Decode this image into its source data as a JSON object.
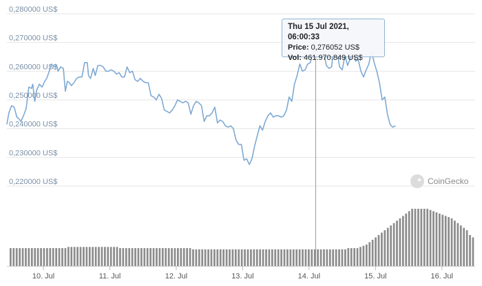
{
  "chart_data": {
    "type": "line",
    "y_ticks": [
      "0,280000 US$",
      "0,270000 US$",
      "0,260000 US$",
      "0,250000 US$",
      "0,240000 US$",
      "0,230000 US$",
      "0,220000 US$"
    ],
    "y_tick_values": [
      0.28,
      0.27,
      0.26,
      0.25,
      0.24,
      0.23,
      0.22
    ],
    "ylim": [
      0.22,
      0.28
    ],
    "x_ticks": [
      "10. Jul",
      "11. Jul",
      "12. Jul",
      "13. Jul",
      "14. Jul",
      "15. Jul",
      "16. Jul"
    ],
    "x_tick_values": [
      1,
      2,
      3,
      4,
      5,
      6,
      7
    ],
    "xlim": [
      0.45,
      7.5
    ],
    "x_unit": "days",
    "grid": true,
    "series": [
      {
        "values": [
          [
            0.45,
            0.2415
          ],
          [
            0.48,
            0.2455
          ],
          [
            0.52,
            0.248
          ],
          [
            0.56,
            0.2475
          ],
          [
            0.6,
            0.244
          ],
          [
            0.63,
            0.2435
          ],
          [
            0.66,
            0.2425
          ],
          [
            0.7,
            0.2445
          ],
          [
            0.74,
            0.247
          ],
          [
            0.78,
            0.2545
          ],
          [
            0.82,
            0.254
          ],
          [
            0.84,
            0.2555
          ],
          [
            0.87,
            0.2495
          ],
          [
            0.9,
            0.2535
          ],
          [
            0.94,
            0.2555
          ],
          [
            0.98,
            0.2545
          ],
          [
            1.02,
            0.2565
          ],
          [
            1.05,
            0.2575
          ],
          [
            1.08,
            0.2595
          ],
          [
            1.12,
            0.2625
          ],
          [
            1.16,
            0.2615
          ],
          [
            1.2,
            0.262
          ],
          [
            1.22,
            0.26
          ],
          [
            1.26,
            0.2615
          ],
          [
            1.3,
            0.261
          ],
          [
            1.33,
            0.253
          ],
          [
            1.36,
            0.2565
          ],
          [
            1.39,
            0.256
          ],
          [
            1.42,
            0.255
          ],
          [
            1.46,
            0.256
          ],
          [
            1.5,
            0.2575
          ],
          [
            1.54,
            0.258
          ],
          [
            1.58,
            0.258
          ],
          [
            1.62,
            0.263
          ],
          [
            1.66,
            0.263
          ],
          [
            1.68,
            0.2585
          ],
          [
            1.71,
            0.2575
          ],
          [
            1.75,
            0.261
          ],
          [
            1.78,
            0.2585
          ],
          [
            1.82,
            0.262
          ],
          [
            1.86,
            0.262
          ],
          [
            1.9,
            0.2615
          ],
          [
            1.94,
            0.26
          ],
          [
            1.98,
            0.26
          ],
          [
            2.02,
            0.2605
          ],
          [
            2.06,
            0.26
          ],
          [
            2.1,
            0.259
          ],
          [
            2.14,
            0.2595
          ],
          [
            2.18,
            0.258
          ],
          [
            2.22,
            0.258
          ],
          [
            2.26,
            0.2615
          ],
          [
            2.3,
            0.2595
          ],
          [
            2.34,
            0.26
          ],
          [
            2.38,
            0.257
          ],
          [
            2.42,
            0.2565
          ],
          [
            2.46,
            0.2575
          ],
          [
            2.5,
            0.2565
          ],
          [
            2.54,
            0.256
          ],
          [
            2.58,
            0.256
          ],
          [
            2.62,
            0.2515
          ],
          [
            2.66,
            0.251
          ],
          [
            2.7,
            0.25
          ],
          [
            2.74,
            0.252
          ],
          [
            2.78,
            0.2505
          ],
          [
            2.82,
            0.2465
          ],
          [
            2.86,
            0.246
          ],
          [
            2.9,
            0.2455
          ],
          [
            2.94,
            0.2465
          ],
          [
            2.98,
            0.248
          ],
          [
            3.02,
            0.25
          ],
          [
            3.06,
            0.2495
          ],
          [
            3.1,
            0.249
          ],
          [
            3.14,
            0.2495
          ],
          [
            3.18,
            0.249
          ],
          [
            3.22,
            0.245
          ],
          [
            3.26,
            0.248
          ],
          [
            3.3,
            0.2495
          ],
          [
            3.34,
            0.249
          ],
          [
            3.38,
            0.248
          ],
          [
            3.42,
            0.2425
          ],
          [
            3.46,
            0.2445
          ],
          [
            3.5,
            0.2445
          ],
          [
            3.54,
            0.2455
          ],
          [
            3.58,
            0.2475
          ],
          [
            3.62,
            0.242
          ],
          [
            3.66,
            0.243
          ],
          [
            3.7,
            0.2425
          ],
          [
            3.74,
            0.241
          ],
          [
            3.78,
            0.2405
          ],
          [
            3.82,
            0.241
          ],
          [
            3.86,
            0.24
          ],
          [
            3.9,
            0.236
          ],
          [
            3.94,
            0.2345
          ],
          [
            3.98,
            0.2345
          ],
          [
            4.02,
            0.229
          ],
          [
            4.06,
            0.2295
          ],
          [
            4.1,
            0.2275
          ],
          [
            4.14,
            0.2295
          ],
          [
            4.18,
            0.234
          ],
          [
            4.22,
            0.2375
          ],
          [
            4.26,
            0.241
          ],
          [
            4.3,
            0.2395
          ],
          [
            4.34,
            0.2425
          ],
          [
            4.38,
            0.2445
          ],
          [
            4.42,
            0.2455
          ],
          [
            4.46,
            0.244
          ],
          [
            4.5,
            0.2445
          ],
          [
            4.54,
            0.2445
          ],
          [
            4.58,
            0.244
          ],
          [
            4.62,
            0.2445
          ],
          [
            4.66,
            0.2465
          ],
          [
            4.7,
            0.251
          ],
          [
            4.74,
            0.2495
          ],
          [
            4.78,
            0.2555
          ],
          [
            4.82,
            0.2585
          ],
          [
            4.86,
            0.2625
          ],
          [
            4.9,
            0.26
          ],
          [
            4.94,
            0.2605
          ],
          [
            4.98,
            0.2625
          ],
          [
            5.02,
            0.263
          ],
          [
            5.06,
            0.2675
          ],
          [
            5.1,
            0.276
          ],
          [
            5.14,
            0.2745
          ],
          [
            5.18,
            0.265
          ],
          [
            5.22,
            0.267
          ],
          [
            5.26,
            0.262
          ],
          [
            5.3,
            0.261
          ],
          [
            5.34,
            0.2615
          ],
          [
            5.38,
            0.2715
          ],
          [
            5.42,
            0.267
          ],
          [
            5.46,
            0.2615
          ],
          [
            5.5,
            0.2605
          ],
          [
            5.54,
            0.2655
          ],
          [
            5.58,
            0.262
          ],
          [
            5.62,
            0.2645
          ],
          [
            5.66,
            0.2695
          ],
          [
            5.7,
            0.2635
          ],
          [
            5.74,
            0.264
          ],
          [
            5.78,
            0.26
          ],
          [
            5.82,
            0.258
          ],
          [
            5.86,
            0.2605
          ],
          [
            5.9,
            0.2625
          ],
          [
            5.94,
            0.267
          ],
          [
            5.98,
            0.263
          ],
          [
            6.02,
            0.26
          ],
          [
            6.06,
            0.256
          ],
          [
            6.1,
            0.25
          ],
          [
            6.14,
            0.251
          ],
          [
            6.18,
            0.245
          ],
          [
            6.22,
            0.2415
          ],
          [
            6.26,
            0.2405
          ],
          [
            6.3,
            0.241
          ]
        ],
        "volume": [
          15,
          15,
          15,
          15,
          15,
          15,
          15,
          15,
          15,
          15,
          15,
          15,
          15,
          15,
          15,
          15,
          15,
          15,
          15,
          16,
          16,
          16,
          16,
          16,
          16,
          16,
          16,
          16,
          16,
          16,
          16,
          16,
          16,
          16,
          16,
          16,
          15,
          15,
          15,
          15,
          15,
          15,
          15,
          15,
          15,
          15,
          15,
          15,
          15,
          15,
          15,
          15,
          15,
          15,
          15,
          15,
          15,
          15,
          15,
          15,
          14,
          14,
          14,
          14,
          14,
          14,
          14,
          14,
          14,
          14,
          14,
          14,
          14,
          14,
          14,
          14,
          14,
          14,
          14,
          14,
          14,
          14,
          14,
          14,
          14,
          14,
          14,
          14,
          14,
          14,
          14,
          14,
          14,
          14,
          14,
          14,
          14,
          14,
          14,
          14,
          14,
          14,
          14,
          14,
          14,
          14,
          14,
          14,
          14,
          14,
          14,
          15,
          15,
          15,
          15,
          16,
          17,
          18,
          20,
          22,
          24,
          26,
          28,
          30,
          32,
          34,
          36,
          38,
          40,
          42,
          44,
          46,
          48,
          48,
          48,
          48,
          48,
          48,
          47,
          46,
          45,
          44,
          43,
          42,
          41,
          40,
          38,
          36,
          34,
          32,
          30,
          26,
          24
        ]
      }
    ],
    "tooltip": {
      "title": "Thu 15 Jul 2021, 06:00:33",
      "price_label": "Price:",
      "price_value": "0,276052 US$",
      "vol_label": "Vol:",
      "vol_value": "461.970.849 US$",
      "x": 5.1,
      "y": 0.276052
    },
    "colors": {
      "line": "#7ea9d3",
      "grid": "#e6e6e6",
      "volume": "#8c8c8c",
      "crosshair": "#999999"
    }
  },
  "watermark": {
    "text": "CoinGecko",
    "icon": "gecko-logo-icon"
  }
}
